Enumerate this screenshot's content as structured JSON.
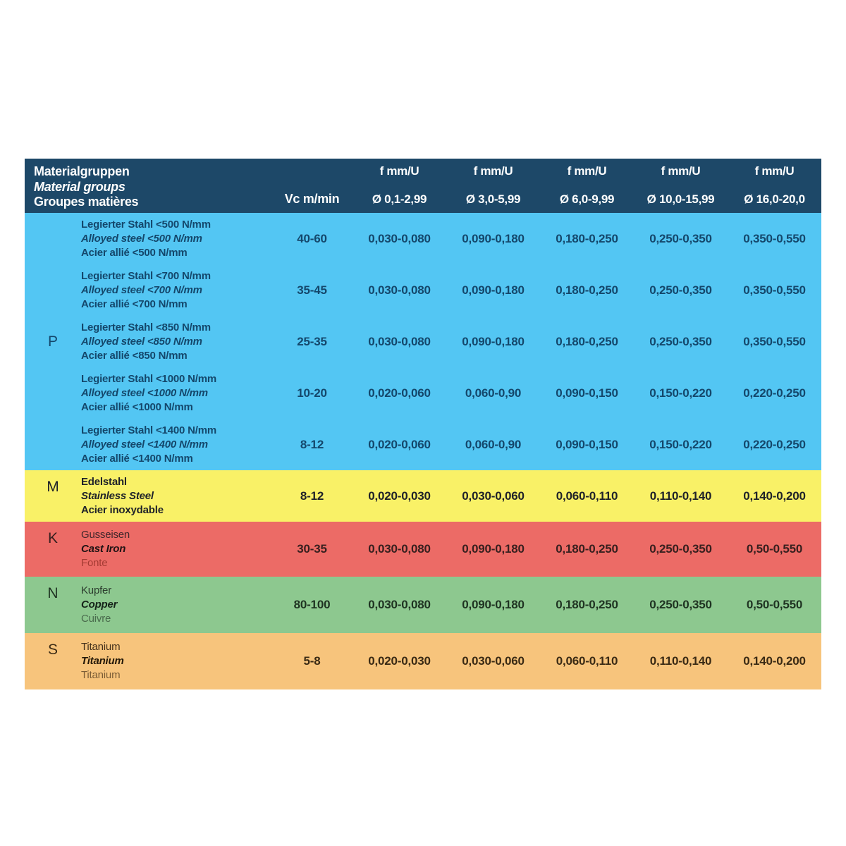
{
  "header": {
    "material_lines": [
      "Materialgruppen",
      "Material groups",
      "Groupes matières"
    ],
    "vc_label": "Vc m/min",
    "f_label": "f mm/U",
    "diameters": [
      "Ø 0,1-2,99",
      "Ø 3,0-5,99",
      "Ø 6,0-9,99",
      "Ø 10,0-15,99",
      "Ø 16,0-20,0"
    ],
    "bg_color": "#1d4868",
    "text_color": "#ffffff"
  },
  "groups": [
    {
      "letter": "P",
      "bg_color": "#53c6f3",
      "rows": [
        {
          "material": [
            "Legierter Stahl <500 N/mm",
            "Alloyed steel <500 N/mm",
            "Acier allié <500 N/mm"
          ],
          "vc": "40-60",
          "f": [
            "0,030-0,080",
            "0,090-0,180",
            "0,180-0,250",
            "0,250-0,350",
            "0,350-0,550"
          ]
        },
        {
          "material": [
            "Legierter Stahl <700 N/mm",
            "Alloyed steel <700 N/mm",
            "Acier allié <700 N/mm"
          ],
          "vc": "35-45",
          "f": [
            "0,030-0,080",
            "0,090-0,180",
            "0,180-0,250",
            "0,250-0,350",
            "0,350-0,550"
          ]
        },
        {
          "material": [
            "Legierter Stahl <850 N/mm",
            "Alloyed steel <850 N/mm",
            "Acier allié <850 N/mm"
          ],
          "vc": "25-35",
          "f": [
            "0,030-0,080",
            "0,090-0,180",
            "0,180-0,250",
            "0,250-0,350",
            "0,350-0,550"
          ]
        },
        {
          "material": [
            "Legierter Stahl <1000 N/mm",
            "Alloyed steel <1000 N/mm",
            "Acier allié <1000 N/mm"
          ],
          "vc": "10-20",
          "f": [
            "0,020-0,060",
            "0,060-0,90",
            "0,090-0,150",
            "0,150-0,220",
            "0,220-0,250"
          ]
        },
        {
          "material": [
            "Legierter Stahl <1400 N/mm",
            "Alloyed steel <1400 N/mm",
            "Acier allié <1400 N/mm"
          ],
          "vc": "8-12",
          "f": [
            "0,020-0,060",
            "0,060-0,90",
            "0,090-0,150",
            "0,150-0,220",
            "0,220-0,250"
          ]
        }
      ]
    },
    {
      "letter": "M",
      "bg_color": "#f9f167",
      "rows": [
        {
          "material": [
            "Edelstahl",
            "Stainless Steel",
            "Acier inoxydable"
          ],
          "vc": "8-12",
          "f": [
            "0,020-0,030",
            "0,030-0,060",
            "0,060-0,110",
            "0,110-0,140",
            "0,140-0,200"
          ]
        }
      ]
    },
    {
      "letter": "K",
      "bg_color": "#ec6b66",
      "rows": [
        {
          "material": [
            "Gusseisen",
            "Cast Iron",
            "Fonte"
          ],
          "vc": "30-35",
          "f": [
            "0,030-0,080",
            "0,090-0,180",
            "0,180-0,250",
            "0,250-0,350",
            "0,50-0,550"
          ]
        }
      ]
    },
    {
      "letter": "N",
      "bg_color": "#8dc88f",
      "rows": [
        {
          "material": [
            "Kupfer",
            "Copper",
            "Cuivre"
          ],
          "vc": "80-100",
          "f": [
            "0,030-0,080",
            "0,090-0,180",
            "0,180-0,250",
            "0,250-0,350",
            "0,50-0,550"
          ]
        }
      ]
    },
    {
      "letter": "S",
      "bg_color": "#f7c47c",
      "rows": [
        {
          "material": [
            "Titanium",
            "Titanium",
            "Titanium"
          ],
          "vc": "5-8",
          "f": [
            "0,020-0,030",
            "0,030-0,060",
            "0,060-0,110",
            "0,110-0,140",
            "0,140-0,200"
          ]
        }
      ]
    }
  ]
}
